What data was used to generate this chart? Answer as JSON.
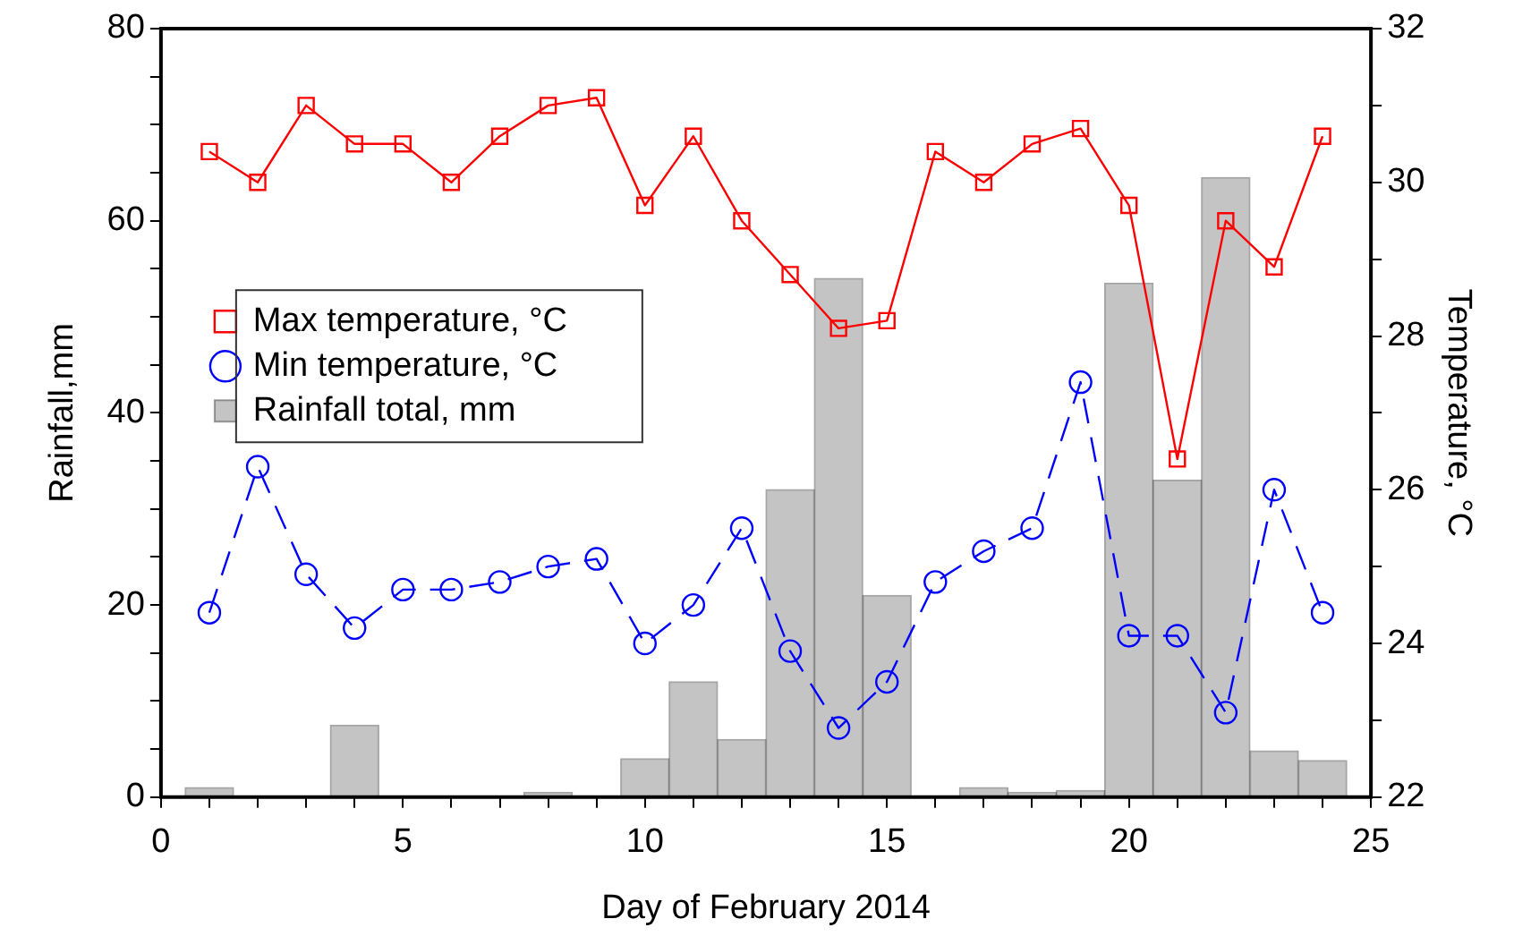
{
  "chart_data": {
    "type": "bar",
    "xlabel": "Day of February 2014",
    "ylabel": "Rainfall,mm",
    "y2label": "Temperature, °C",
    "x": [
      1,
      2,
      3,
      4,
      5,
      6,
      7,
      8,
      9,
      10,
      11,
      12,
      13,
      14,
      15,
      16,
      17,
      18,
      19,
      20,
      21,
      22,
      23,
      24
    ],
    "series": [
      {
        "name": "Max temperature, °C",
        "type": "line",
        "axis": "y2",
        "color": "#ff0000",
        "marker": "square",
        "line_style": "solid",
        "values": [
          30.4,
          30.0,
          31.0,
          30.5,
          30.5,
          30.0,
          30.6,
          31.0,
          31.1,
          29.7,
          30.6,
          29.5,
          28.8,
          28.1,
          28.2,
          30.4,
          30.0,
          30.5,
          30.7,
          29.7,
          26.4,
          29.5,
          28.9,
          30.6
        ]
      },
      {
        "name": "Min temperature, °C",
        "type": "line",
        "axis": "y2",
        "color": "#0000ff",
        "marker": "circle",
        "line_style": "dashed",
        "values": [
          24.4,
          26.3,
          24.9,
          24.2,
          24.7,
          24.7,
          24.8,
          25.0,
          25.1,
          24.0,
          24.5,
          25.5,
          23.9,
          22.9,
          23.5,
          24.8,
          25.2,
          25.5,
          27.4,
          24.1,
          24.1,
          23.1,
          26.0,
          24.4
        ]
      },
      {
        "name": "Rainfall total, mm",
        "color": "#c4c4c4",
        "values": [
          1,
          0,
          0,
          7.5,
          0,
          0,
          0,
          0.5,
          0,
          4,
          12,
          6,
          32,
          54,
          21,
          0,
          1,
          0.5,
          0.7,
          53.5,
          33,
          64.5,
          4.8,
          3.8
        ]
      }
    ],
    "xlim": [
      0,
      25
    ],
    "xticks": [
      0,
      {
        "value": 1,
        "label": null
      },
      {
        "value": 2,
        "label": null
      },
      {
        "value": 3,
        "label": null
      },
      {
        "value": 4,
        "label": null
      },
      5,
      {
        "value": 6,
        "label": null
      },
      {
        "value": 7,
        "label": null
      },
      {
        "value": 8,
        "label": null
      },
      {
        "value": 9,
        "label": null
      },
      10,
      {
        "value": 11,
        "label": null
      },
      {
        "value": 12,
        "label": null
      },
      {
        "value": 13,
        "label": null
      },
      {
        "value": 14,
        "label": null
      },
      15,
      {
        "value": 16,
        "label": null
      },
      {
        "value": 17,
        "label": null
      },
      {
        "value": 18,
        "label": null
      },
      {
        "value": 19,
        "label": null
      },
      20,
      {
        "value": 21,
        "label": null
      },
      {
        "value": 22,
        "label": null
      },
      {
        "value": 23,
        "label": null
      },
      {
        "value": 24,
        "label": null
      },
      25
    ],
    "ylim": [
      0,
      80
    ],
    "yticks": [
      0,
      {
        "value": 5,
        "label": null
      },
      {
        "value": 10,
        "label": null
      },
      {
        "value": 15,
        "label": null
      },
      20,
      {
        "value": 25,
        "label": null
      },
      {
        "value": 30,
        "label": null
      },
      {
        "value": 35,
        "label": null
      },
      40,
      {
        "value": 45,
        "label": null
      },
      {
        "value": 50,
        "label": null
      },
      {
        "value": 55,
        "label": null
      },
      60,
      {
        "value": 65,
        "label": null
      },
      {
        "value": 70,
        "label": null
      },
      {
        "value": 75,
        "label": null
      },
      80
    ],
    "y2lim": [
      22,
      32
    ],
    "y2ticks": [
      22,
      {
        "value": 23,
        "label": null
      },
      24,
      {
        "value": 25,
        "label": null
      },
      26,
      {
        "value": 27,
        "label": null
      },
      28,
      {
        "value": 29,
        "label": null
      },
      30,
      {
        "value": 31,
        "label": null
      },
      32
    ],
    "grid": false,
    "legend": "center left"
  }
}
